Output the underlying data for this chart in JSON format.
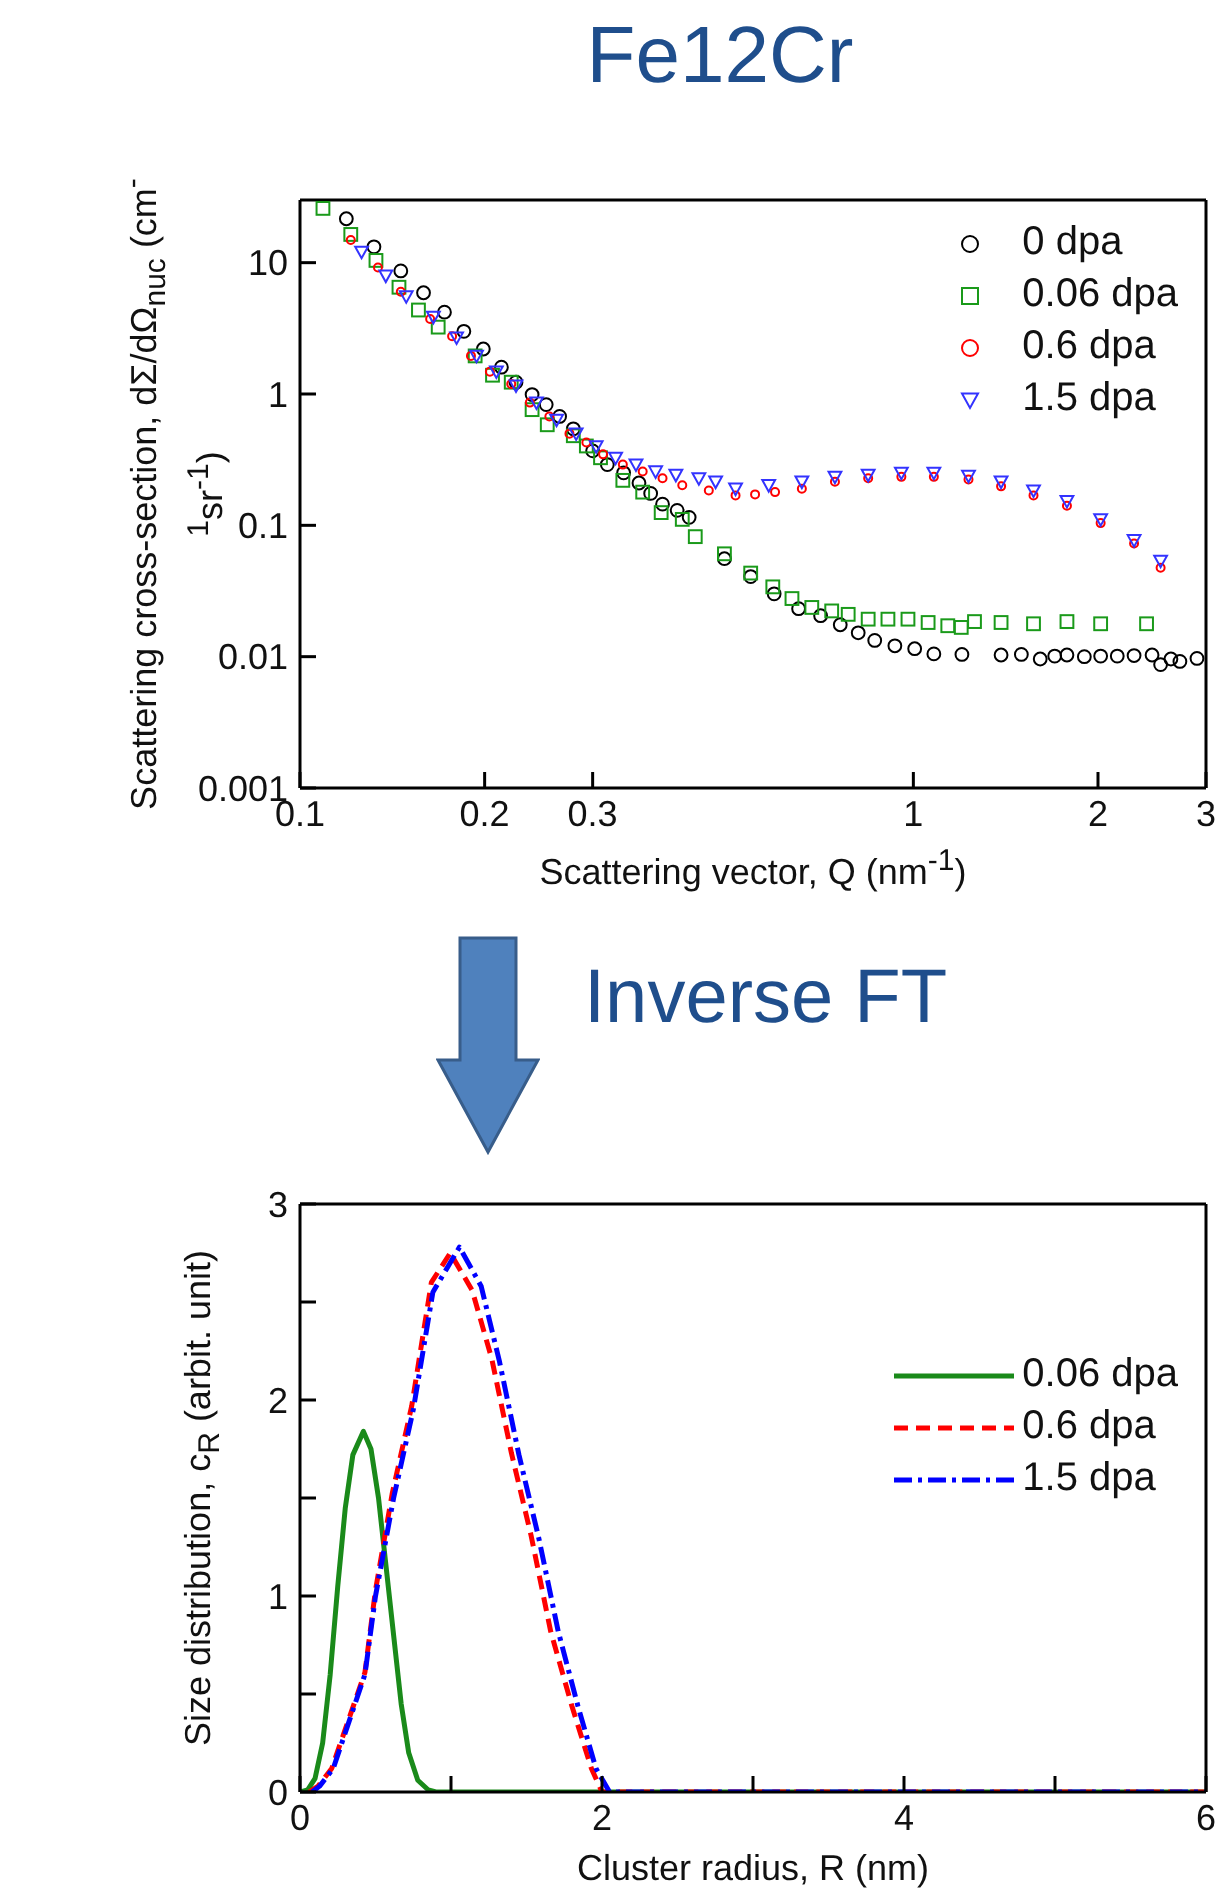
{
  "chart_data": [
    {
      "type": "scatter",
      "title": "Fe12Cr",
      "xlabel": "Scattering vector, Q (nm$^{-1}$)",
      "ylabel": "Scattering cross-section, dΣ/dΩ$_{nuc}$ (cm$^{-1}$sr$^{-1}$)",
      "log": "xy",
      "xlim": [
        0.1,
        3
      ],
      "xticks": [
        0.1,
        0.2,
        0.3,
        1,
        2,
        3
      ],
      "ylim": [
        0.001,
        30
      ],
      "yticks": [
        0.001,
        0.01,
        0.1,
        1,
        10
      ],
      "legend": "top right",
      "series": [
        {
          "name": "0 dpa",
          "color": "#000000",
          "marker": "circle",
          "x": [
            0.119,
            0.132,
            0.146,
            0.159,
            0.172,
            0.185,
            0.199,
            0.213,
            0.225,
            0.239,
            0.252,
            0.265,
            0.279,
            0.3,
            0.317,
            0.337,
            0.357,
            0.373,
            0.39,
            0.412,
            0.431,
            0.492,
            0.543,
            0.593,
            0.65,
            0.706,
            0.76,
            0.813,
            0.865,
            0.933,
            1.005,
            1.08,
            1.2,
            1.39,
            1.5,
            1.61,
            1.7,
            1.78,
            1.9,
            2.02,
            2.15,
            2.29,
            2.45,
            2.53,
            2.63,
            2.72,
            2.9
          ],
          "values": [
            21.6,
            13.2,
            8.65,
            5.9,
            4.2,
            3.0,
            2.2,
            1.6,
            1.23,
            0.99,
            0.83,
            0.675,
            0.543,
            0.369,
            0.29,
            0.251,
            0.21,
            0.175,
            0.145,
            0.13,
            0.115,
            0.0557,
            0.0407,
            0.0301,
            0.0232,
            0.0205,
            0.0175,
            0.0152,
            0.0133,
            0.0121,
            0.0115,
            0.0105,
            0.0104,
            0.0103,
            0.0104,
            0.0096,
            0.0101,
            0.0103,
            0.01,
            0.0101,
            0.0101,
            0.0102,
            0.0103,
            0.0087,
            0.0096,
            0.0092,
            0.0097
          ]
        },
        {
          "name": "0.06 dpa",
          "color": "#1a9a1a",
          "marker": "square",
          "x": [
            0.109,
            0.121,
            0.133,
            0.145,
            0.156,
            0.168,
            0.193,
            0.206,
            0.221,
            0.239,
            0.253,
            0.279,
            0.293,
            0.309,
            0.336,
            0.362,
            0.388,
            0.42,
            0.441,
            0.492,
            0.543,
            0.59,
            0.634,
            0.683,
            0.736,
            0.783,
            0.844,
            0.909,
            0.98,
            1.057,
            1.138,
            1.197,
            1.258,
            1.39,
            1.57,
            1.78,
            2.02,
            2.4
          ],
          "values": [
            25.9,
            16.4,
            10.4,
            6.5,
            4.36,
            3.23,
            1.95,
            1.39,
            1.23,
            0.76,
            0.583,
            0.481,
            0.402,
            0.327,
            0.22,
            0.179,
            0.125,
            0.111,
            0.082,
            0.0607,
            0.0433,
            0.034,
            0.0277,
            0.0237,
            0.0223,
            0.021,
            0.0193,
            0.0193,
            0.0193,
            0.0182,
            0.0172,
            0.0167,
            0.0185,
            0.0182,
            0.0178,
            0.0185,
            0.0178,
            0.0178
          ]
        },
        {
          "name": "0.6 dpa",
          "color": "#ff0000",
          "marker": "circle",
          "x": [
            0.121,
            0.134,
            0.146,
            0.163,
            0.177,
            0.19,
            0.204,
            0.221,
            0.237,
            0.255,
            0.275,
            0.293,
            0.312,
            0.336,
            0.362,
            0.39,
            0.42,
            0.464,
            0.513,
            0.552,
            0.595,
            0.658,
            0.745,
            0.844,
            0.956,
            1.08,
            1.23,
            1.39,
            1.57,
            1.78,
            2.02,
            2.29,
            2.53
          ],
          "values": [
            14.9,
            9.2,
            6.0,
            3.73,
            2.75,
            1.95,
            1.48,
            1.19,
            0.86,
            0.675,
            0.499,
            0.427,
            0.347,
            0.29,
            0.257,
            0.228,
            0.202,
            0.184,
            0.169,
            0.172,
            0.179,
            0.19,
            0.215,
            0.228,
            0.234,
            0.234,
            0.223,
            0.198,
            0.169,
            0.141,
            0.104,
            0.0728,
            0.0476
          ]
        },
        {
          "name": "1.5 dpa",
          "color": "#3333ff",
          "marker": "triangle",
          "x": [
            0.126,
            0.138,
            0.149,
            0.165,
            0.18,
            0.194,
            0.209,
            0.225,
            0.243,
            0.262,
            0.282,
            0.304,
            0.327,
            0.353,
            0.38,
            0.41,
            0.447,
            0.476,
            0.513,
            0.581,
            0.658,
            0.745,
            0.844,
            0.956,
            1.08,
            1.23,
            1.39,
            1.57,
            1.78,
            2.02,
            2.29,
            2.53
          ],
          "values": [
            12.1,
            7.96,
            5.55,
            3.86,
            2.69,
            1.95,
            1.48,
            1.16,
            0.86,
            0.635,
            0.499,
            0.4,
            0.327,
            0.29,
            0.257,
            0.242,
            0.228,
            0.215,
            0.19,
            0.202,
            0.215,
            0.234,
            0.242,
            0.251,
            0.251,
            0.238,
            0.215,
            0.184,
            0.153,
            0.111,
            0.077,
            0.0537
          ]
        }
      ]
    },
    {
      "type": "line",
      "annotations": [
        "Inverse FT"
      ],
      "xlabel": "Cluster radius, R (nm)",
      "ylabel": "Size distribution, c$_{R}$ (arbit. unit)",
      "xlim": [
        0,
        6
      ],
      "xticks": [
        0,
        {
          "value": 1,
          "label": null
        },
        2,
        {
          "value": 3,
          "label": null
        },
        4,
        {
          "value": 5,
          "label": null
        },
        6
      ],
      "ylim": [
        0,
        3
      ],
      "yticks": [
        0,
        {
          "value": 0.5,
          "label": null
        },
        1,
        {
          "value": 1.5,
          "label": null
        },
        2,
        {
          "value": 2.5,
          "label": null
        },
        3
      ],
      "legend": "right",
      "series": [
        {
          "name": "0.06 dpa",
          "color": "#1a8a1a",
          "line_style": "solid",
          "x": [
            0,
            0.05,
            0.1,
            0.15,
            0.2,
            0.25,
            0.3,
            0.35,
            0.42,
            0.47,
            0.52,
            0.57,
            0.62,
            0.67,
            0.72,
            0.78,
            0.85,
            0.9,
            2,
            6
          ],
          "values": [
            0,
            0.01,
            0.07,
            0.25,
            0.6,
            1.05,
            1.45,
            1.72,
            1.84,
            1.75,
            1.5,
            1.15,
            0.8,
            0.45,
            0.2,
            0.06,
            0.01,
            0,
            0,
            0
          ]
        },
        {
          "name": "0.6 dpa",
          "color": "#ff0000",
          "line_style": "dashed",
          "x": [
            0.06,
            0.12,
            0.21,
            0.43,
            0.5,
            0.61,
            0.74,
            0.87,
            0.995,
            1.14,
            1.27,
            1.4,
            1.53,
            1.66,
            1.8,
            1.93,
            2.0,
            6
          ],
          "values": [
            0,
            0.03,
            0.12,
            0.61,
            1.03,
            1.52,
            1.97,
            2.6,
            2.75,
            2.56,
            2.21,
            1.73,
            1.31,
            0.82,
            0.44,
            0.12,
            0,
            0
          ]
        },
        {
          "name": "1.5 dpa",
          "color": "#0000ff",
          "line_style": "dashdot",
          "x": [
            0.08,
            0.13,
            0.22,
            0.43,
            0.5,
            0.62,
            0.75,
            0.88,
            1.056,
            1.2,
            1.32,
            1.45,
            1.58,
            1.71,
            1.84,
            1.96,
            2.05,
            6
          ],
          "values": [
            0,
            0.03,
            0.12,
            0.6,
            1.0,
            1.5,
            1.95,
            2.55,
            2.78,
            2.58,
            2.2,
            1.72,
            1.3,
            0.82,
            0.44,
            0.12,
            0,
            0
          ]
        }
      ]
    }
  ]
}
